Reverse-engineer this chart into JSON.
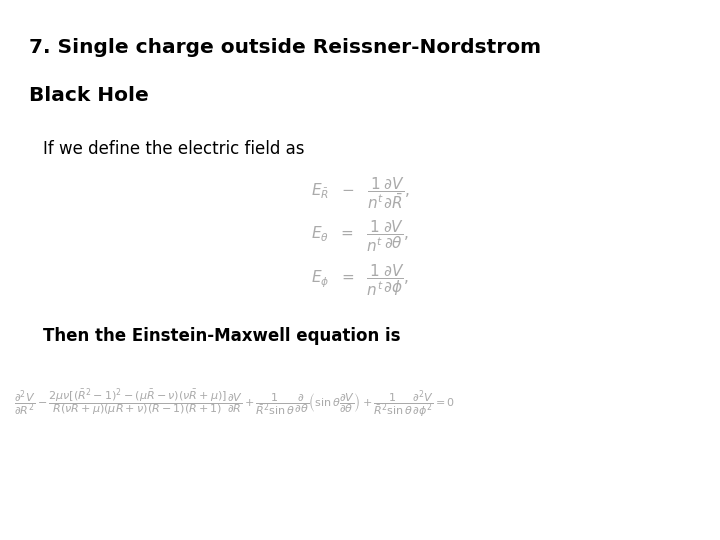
{
  "title_line1": "7. Single charge outside Reissner-Nordstrom",
  "title_line2": "Black Hole",
  "intro_text": "If we define the electric field as",
  "then_text": "Then the Einstein-Maxwell equation is",
  "bg_color": "#ffffff",
  "text_color": "#000000",
  "eq_color": "#aaaaaa",
  "title_fontsize": 14.5,
  "body_fontsize": 12,
  "eq_fontsize": 11
}
